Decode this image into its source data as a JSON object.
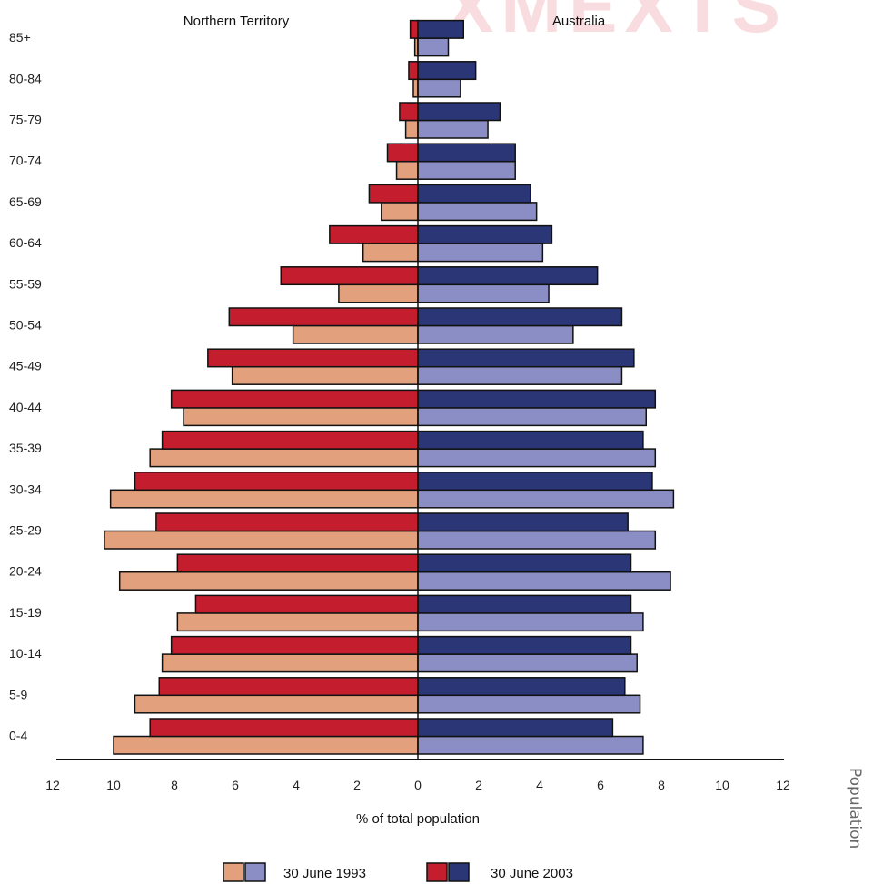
{
  "watermark": "XMEXTS",
  "side_caption": "Population",
  "colors": {
    "nt_1993": "#E2A07C",
    "nt_2003": "#C41E2E",
    "au_1993": "#8A8EC4",
    "au_2003": "#2B3676",
    "outline": "#111111"
  },
  "chart_data": {
    "type": "bar",
    "orientation": "horizontal",
    "subtype": "population-pyramid",
    "xlabel": "% of total population",
    "xlim": [
      -12,
      12
    ],
    "xticks": [
      12,
      10,
      8,
      6,
      4,
      2,
      0,
      2,
      4,
      6,
      8,
      10,
      12
    ],
    "panels": [
      "Northern Territory",
      "Australia"
    ],
    "categories": [
      "0-4",
      "5-9",
      "10-14",
      "15-19",
      "20-24",
      "25-29",
      "30-34",
      "35-39",
      "40-44",
      "45-49",
      "50-54",
      "55-59",
      "60-64",
      "65-69",
      "70-74",
      "75-79",
      "80-84",
      "85+"
    ],
    "legend": [
      "30 June 1993",
      "30 June 2003"
    ],
    "series": [
      {
        "name": "30 June 1993",
        "panel": "Northern Territory",
        "values": [
          10.0,
          9.3,
          8.4,
          7.9,
          9.8,
          10.3,
          10.1,
          8.8,
          7.7,
          6.1,
          4.1,
          2.6,
          1.8,
          1.2,
          0.7,
          0.4,
          0.15,
          0.1
        ]
      },
      {
        "name": "30 June 2003",
        "panel": "Northern Territory",
        "values": [
          8.8,
          8.5,
          8.1,
          7.3,
          7.9,
          8.6,
          9.3,
          8.4,
          8.1,
          6.9,
          6.2,
          4.5,
          2.9,
          1.6,
          1.0,
          0.6,
          0.3,
          0.25
        ]
      },
      {
        "name": "30 June 1993",
        "panel": "Australia",
        "values": [
          7.4,
          7.3,
          7.2,
          7.4,
          8.3,
          7.8,
          8.4,
          7.8,
          7.5,
          6.7,
          5.1,
          4.3,
          4.1,
          3.9,
          3.2,
          2.3,
          1.4,
          1.0
        ]
      },
      {
        "name": "30 June 2003",
        "panel": "Australia",
        "values": [
          6.4,
          6.8,
          7.0,
          7.0,
          7.0,
          6.9,
          7.7,
          7.4,
          7.8,
          7.1,
          6.7,
          5.9,
          4.4,
          3.7,
          3.2,
          2.7,
          1.9,
          1.5
        ]
      }
    ]
  }
}
